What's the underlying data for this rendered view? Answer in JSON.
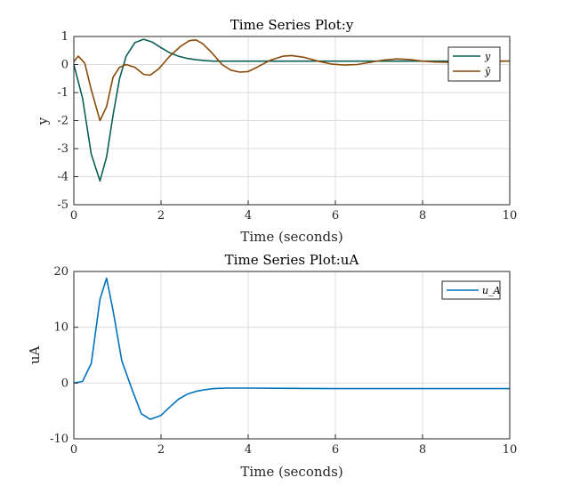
{
  "chart_data": [
    {
      "type": "line",
      "title": "Time Series Plot:y",
      "xlabel": "Time (seconds)",
      "ylabel": "y",
      "xlim": [
        0,
        10
      ],
      "ylim": [
        -5,
        1
      ],
      "xticks": [
        "0",
        "2",
        "4",
        "6",
        "8",
        "10"
      ],
      "yticks": [
        "1",
        "0",
        "-1",
        "-2",
        "-3",
        "-4",
        "-5"
      ],
      "grid": true,
      "legend_position": "top-right",
      "series": [
        {
          "name": "y",
          "color": "#0b5f57",
          "x": [
            0,
            0.2,
            0.4,
            0.6,
            0.75,
            0.9,
            1.05,
            1.2,
            1.4,
            1.6,
            1.8,
            2.0,
            2.2,
            2.4,
            2.6,
            2.8,
            3.0,
            3.2,
            3.5,
            4,
            5,
            6,
            7,
            8,
            9,
            10
          ],
          "y": [
            0,
            -1.2,
            -3.2,
            -4.15,
            -3.3,
            -1.8,
            -0.5,
            0.3,
            0.78,
            0.9,
            0.8,
            0.6,
            0.42,
            0.3,
            0.22,
            0.17,
            0.14,
            0.12,
            0.12,
            0.12,
            0.12,
            0.12,
            0.12,
            0.12,
            0.12,
            0.12
          ]
        },
        {
          "name": "ŷ",
          "color": "#8a4b08",
          "x": [
            0,
            0.1,
            0.25,
            0.4,
            0.6,
            0.75,
            0.9,
            1.05,
            1.2,
            1.4,
            1.6,
            1.75,
            1.95,
            2.2,
            2.45,
            2.65,
            2.8,
            2.95,
            3.15,
            3.4,
            3.6,
            3.8,
            4.0,
            4.2,
            4.5,
            4.8,
            5.0,
            5.3,
            5.6,
            5.9,
            6.2,
            6.5,
            6.8,
            7.1,
            7.4,
            7.7,
            8.0,
            8.3,
            8.6,
            9.0,
            9.5,
            10.0
          ],
          "y": [
            0.1,
            0.3,
            0.05,
            -0.9,
            -2.0,
            -1.5,
            -0.45,
            -0.1,
            0.0,
            -0.1,
            -0.35,
            -0.38,
            -0.15,
            0.3,
            0.65,
            0.85,
            0.88,
            0.75,
            0.45,
            0.0,
            -0.2,
            -0.27,
            -0.25,
            -0.1,
            0.15,
            0.3,
            0.32,
            0.25,
            0.12,
            0.02,
            -0.02,
            0.0,
            0.08,
            0.16,
            0.2,
            0.18,
            0.12,
            0.09,
            0.08,
            0.1,
            0.12,
            0.12
          ]
        }
      ]
    },
    {
      "type": "line",
      "title": "Time Series Plot:uA",
      "xlabel": "Time (seconds)",
      "ylabel": "uA",
      "xlim": [
        0,
        10
      ],
      "ylim": [
        -10,
        20
      ],
      "xticks": [
        "0",
        "2",
        "4",
        "6",
        "8",
        "10"
      ],
      "yticks": [
        "20",
        "10",
        "0",
        "-10"
      ],
      "grid": true,
      "legend_position": "top-right",
      "series": [
        {
          "name": "u_A",
          "color": "#0072bd",
          "x": [
            0,
            0.2,
            0.4,
            0.6,
            0.75,
            0.9,
            1.1,
            1.35,
            1.55,
            1.75,
            2.0,
            2.2,
            2.4,
            2.6,
            2.8,
            3.0,
            3.2,
            3.5,
            4,
            5,
            6,
            7,
            8,
            9,
            10
          ],
          "y": [
            0,
            0.3,
            3.5,
            15,
            18.8,
            13,
            4,
            -1.5,
            -5.5,
            -6.5,
            -5.8,
            -4.3,
            -2.9,
            -2.0,
            -1.5,
            -1.2,
            -1.0,
            -0.9,
            -0.9,
            -0.95,
            -1.0,
            -1.0,
            -1.0,
            -1.0,
            -1.0
          ]
        }
      ]
    }
  ]
}
